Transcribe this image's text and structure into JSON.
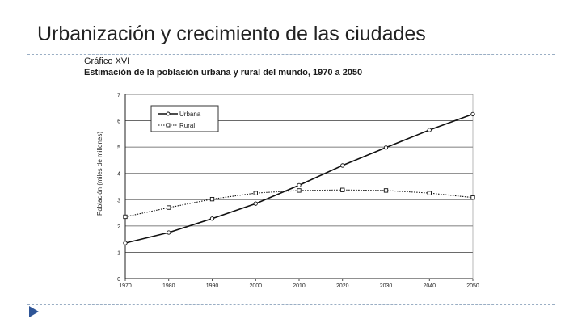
{
  "slide": {
    "title": "Urbanización y crecimiento de las ciudades"
  },
  "chart_data": {
    "type": "line",
    "kicker": "Gráfico XVI",
    "title": "Estimación de la población urbana y rural del mundo, 1970 a 2050",
    "xlabel": "",
    "ylabel": "Población (miles de millones)",
    "x": [
      1970,
      1980,
      1990,
      2000,
      2010,
      2020,
      2030,
      2040,
      2050
    ],
    "ylim": [
      0,
      7
    ],
    "yticks": [
      0,
      1,
      2,
      3,
      4,
      5,
      6,
      7
    ],
    "grid": true,
    "legend_position": "top-left",
    "series": [
      {
        "name": "Urbana",
        "marker": "circle",
        "style": "solid",
        "values": [
          1.35,
          1.75,
          2.28,
          2.85,
          3.55,
          4.3,
          4.98,
          5.65,
          6.25
        ]
      },
      {
        "name": "Rural",
        "marker": "square",
        "style": "dotted",
        "values": [
          2.35,
          2.7,
          3.02,
          3.25,
          3.35,
          3.37,
          3.35,
          3.25,
          3.08
        ]
      }
    ],
    "colors": {
      "line": "#111111",
      "grid": "#555555",
      "marker_fill": "#ffffff"
    }
  }
}
